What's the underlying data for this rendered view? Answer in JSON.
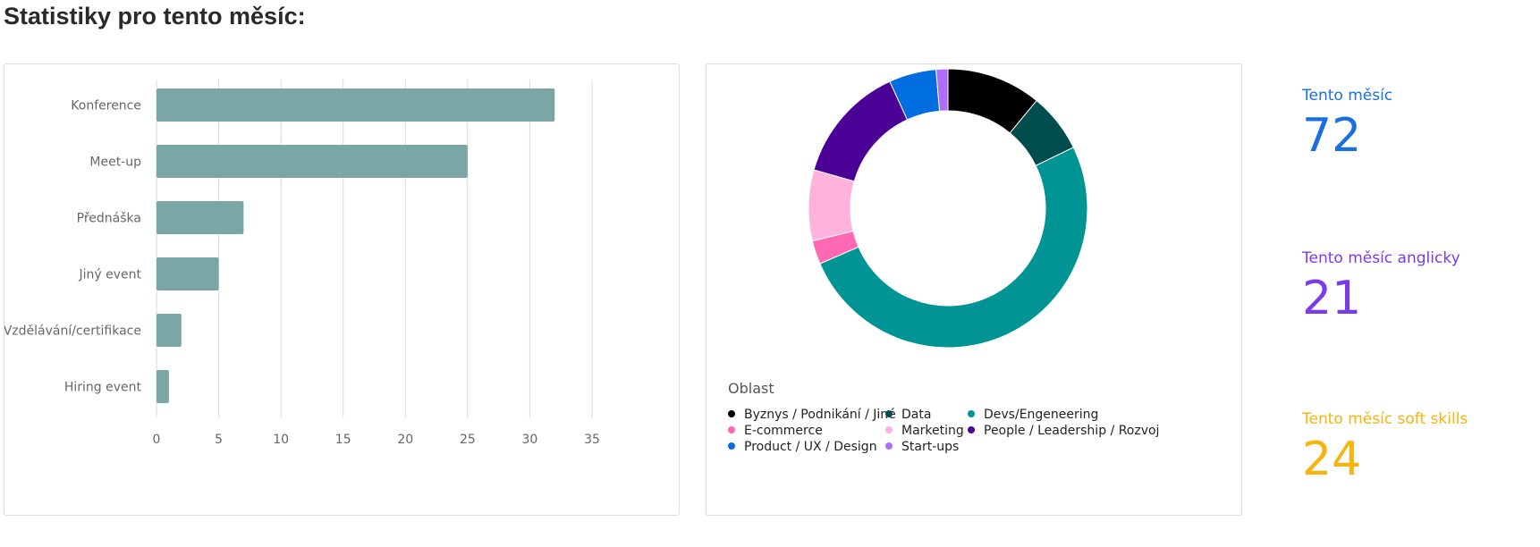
{
  "title": "Statistiky pro tento měsíc:",
  "chart_data": [
    {
      "type": "bar",
      "orientation": "horizontal",
      "categories": [
        "Konference",
        "Meet-up",
        "Přednáška",
        "Jiný event",
        "Vzdělávání/certifikace",
        "Hiring event"
      ],
      "values": [
        32,
        25,
        7,
        5,
        2,
        1
      ],
      "xticks": [
        "0",
        "5",
        "10",
        "15",
        "20",
        "25",
        "30",
        "35"
      ],
      "xlim": [
        0,
        35
      ],
      "grid": true,
      "bar_color": "#7aa6a6"
    },
    {
      "type": "pie",
      "donut": true,
      "legend_title": "Oblast",
      "legend_position": "bottom",
      "series": [
        {
          "name": "Byznys / Podnikání / Jiné",
          "value": 8,
          "color": "#000000"
        },
        {
          "name": "Data",
          "value": 5,
          "color": "#004d4d"
        },
        {
          "name": "Devs/Engeneering",
          "value": 37,
          "color": "#009494"
        },
        {
          "name": "E-commerce",
          "value": 2,
          "color": "#ff69b4"
        },
        {
          "name": "Marketing",
          "value": 6,
          "color": "#ffb3dc"
        },
        {
          "name": "People / Leadership / Rozvoj",
          "value": 10,
          "color": "#4b0096"
        },
        {
          "name": "Product / UX / Design",
          "value": 4,
          "color": "#006ee0"
        },
        {
          "name": "Start-ups",
          "value": 1,
          "color": "#b06ef8"
        }
      ]
    }
  ],
  "stats": [
    {
      "label": "Tento měsíc",
      "value": "72",
      "color": "#1a6fe0"
    },
    {
      "label": "Tento měsíc anglicky",
      "value": "21",
      "color": "#7c3aed"
    },
    {
      "label": "Tento měsíc soft skills",
      "value": "24",
      "color": "#f6b40e"
    }
  ]
}
